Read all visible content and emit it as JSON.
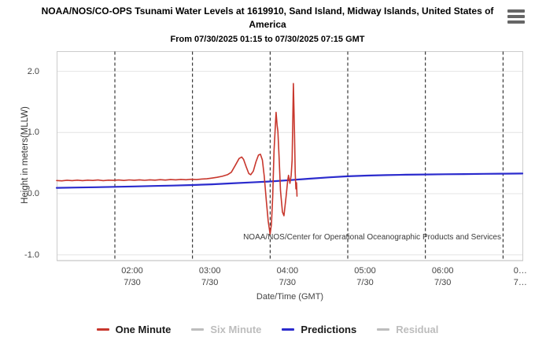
{
  "header": {
    "title": "NOAA/NOS/CO-OPS Tsunami Water Levels at 1619910, Sand Island, Midway Islands, United States of America",
    "subtitle": "From 07/30/2025 01:15 to 07/30/2025 07:15 GMT",
    "menu_icon": "hamburger-icon"
  },
  "chart_data": {
    "type": "line",
    "title": "NOAA/NOS/CO-OPS Tsunami Water Levels at 1619910, Sand Island, Midway Islands, United States of America",
    "subtitle": "From 07/30/2025 01:15 to 07/30/2025 07:15 GMT",
    "xlabel": "Date/Time (GMT)",
    "ylabel": "Height in meters(MLLW)",
    "watermark": "NOAA/NOS/Center for Operational Oceanographic Products and Services",
    "x_start": "07/30/2025 01:15 GMT",
    "x_end": "07/30/2025 07:15 GMT",
    "ylim": [
      -1.09,
      2.32
    ],
    "grid": {
      "horizontal": "solid-light",
      "vertical": "dashed-black"
    },
    "legend_position": "bottom-center",
    "y_ticks": [
      {
        "label": "2.0",
        "value": 2.0
      },
      {
        "label": "1.0",
        "value": 1.0
      },
      {
        "label": "0.0",
        "value": 0.0
      },
      {
        "label": "-1.0",
        "value": -1.0
      }
    ],
    "x_ticks": [
      {
        "time": "02:00",
        "date": "7/30",
        "minutes": 45
      },
      {
        "time": "03:00",
        "date": "7/30",
        "minutes": 105
      },
      {
        "time": "04:00",
        "date": "7/30",
        "minutes": 165
      },
      {
        "time": "05:00",
        "date": "7/30",
        "minutes": 225
      },
      {
        "time": "06:00",
        "date": "7/30",
        "minutes": 285
      },
      {
        "time": "0…",
        "date": "7…",
        "minutes": 345
      }
    ],
    "series": [
      {
        "name": "One Minute",
        "color": "#c8372d",
        "enabled": true,
        "width": 1.6,
        "points": [
          [
            0,
            0.215
          ],
          [
            4,
            0.21
          ],
          [
            8,
            0.22
          ],
          [
            12,
            0.213
          ],
          [
            16,
            0.222
          ],
          [
            20,
            0.214
          ],
          [
            24,
            0.221
          ],
          [
            28,
            0.216
          ],
          [
            32,
            0.224
          ],
          [
            36,
            0.214
          ],
          [
            40,
            0.222
          ],
          [
            44,
            0.217
          ],
          [
            48,
            0.224
          ],
          [
            52,
            0.216
          ],
          [
            56,
            0.225
          ],
          [
            60,
            0.22
          ],
          [
            64,
            0.226
          ],
          [
            68,
            0.219
          ],
          [
            72,
            0.227
          ],
          [
            76,
            0.221
          ],
          [
            80,
            0.229
          ],
          [
            84,
            0.223
          ],
          [
            88,
            0.231
          ],
          [
            92,
            0.226
          ],
          [
            96,
            0.233
          ],
          [
            100,
            0.228
          ],
          [
            104,
            0.236
          ],
          [
            108,
            0.231
          ],
          [
            112,
            0.24
          ],
          [
            116,
            0.243
          ],
          [
            120,
            0.255
          ],
          [
            124,
            0.268
          ],
          [
            128,
            0.285
          ],
          [
            132,
            0.31
          ],
          [
            135,
            0.35
          ],
          [
            138,
            0.46
          ],
          [
            141,
            0.575
          ],
          [
            143,
            0.6
          ],
          [
            144.5,
            0.56
          ],
          [
            146.5,
            0.44
          ],
          [
            148.5,
            0.33
          ],
          [
            150,
            0.31
          ],
          [
            152,
            0.37
          ],
          [
            154,
            0.52
          ],
          [
            156,
            0.63
          ],
          [
            157.5,
            0.645
          ],
          [
            159,
            0.55
          ],
          [
            160.5,
            0.28
          ],
          [
            162,
            -0.1
          ],
          [
            163.5,
            -0.45
          ],
          [
            165,
            -0.66
          ],
          [
            166,
            -0.5
          ],
          [
            167,
            -0.05
          ],
          [
            168,
            0.7
          ],
          [
            169.6,
            1.33
          ],
          [
            170.4,
            1.12
          ],
          [
            171,
            1.02
          ],
          [
            172,
            0.55
          ],
          [
            173,
            0.05
          ],
          [
            174.5,
            -0.3
          ],
          [
            175.7,
            -0.36
          ],
          [
            177.3,
            -0.05
          ],
          [
            178.6,
            0.22
          ],
          [
            179.2,
            0.3
          ],
          [
            180.3,
            0.17
          ],
          [
            181.3,
            0.3
          ],
          [
            182,
            0.55
          ],
          [
            183,
            1.8
          ],
          [
            183.8,
            1.0
          ],
          [
            184.4,
            0.35
          ],
          [
            184.9,
            0.08
          ],
          [
            185.4,
            0.18
          ],
          [
            185.8,
            -0.04
          ]
        ]
      },
      {
        "name": "Six Minute",
        "color": "#bdbdbd",
        "enabled": false,
        "width": 1.6,
        "points": []
      },
      {
        "name": "Predictions",
        "color": "#2b2bcd",
        "enabled": true,
        "width": 2.2,
        "points": [
          [
            0,
            0.095
          ],
          [
            15,
            0.101
          ],
          [
            30,
            0.106
          ],
          [
            45,
            0.112
          ],
          [
            60,
            0.119
          ],
          [
            75,
            0.126
          ],
          [
            90,
            0.133
          ],
          [
            105,
            0.141
          ],
          [
            120,
            0.153
          ],
          [
            135,
            0.168
          ],
          [
            150,
            0.184
          ],
          [
            165,
            0.2
          ],
          [
            180,
            0.222
          ],
          [
            195,
            0.245
          ],
          [
            210,
            0.267
          ],
          [
            225,
            0.285
          ],
          [
            240,
            0.296
          ],
          [
            255,
            0.304
          ],
          [
            270,
            0.31
          ],
          [
            285,
            0.314
          ],
          [
            300,
            0.318
          ],
          [
            315,
            0.321
          ],
          [
            330,
            0.324
          ],
          [
            345,
            0.327
          ],
          [
            360,
            0.33
          ]
        ]
      },
      {
        "name": "Residual",
        "color": "#bdbdbd",
        "enabled": false,
        "width": 1.6,
        "points": []
      }
    ]
  },
  "legend": {
    "items": [
      {
        "label": "One Minute",
        "color": "#c8372d",
        "enabled": true
      },
      {
        "label": "Six Minute",
        "color": "#bdbdbd",
        "enabled": false
      },
      {
        "label": "Predictions",
        "color": "#2b2bcd",
        "enabled": true
      },
      {
        "label": "Residual",
        "color": "#bdbdbd",
        "enabled": false
      }
    ]
  }
}
